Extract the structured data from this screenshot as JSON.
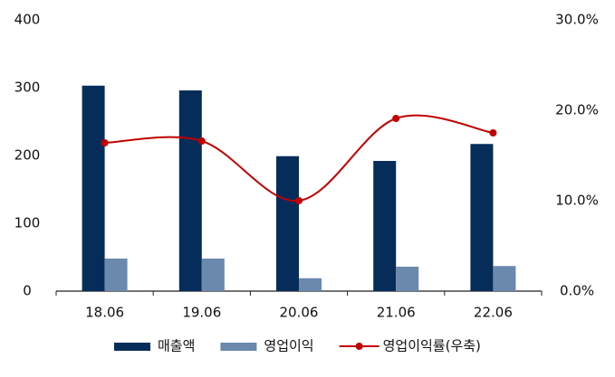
{
  "chart_data": {
    "type": "bar",
    "categories": [
      "18.06",
      "19.06",
      "20.06",
      "21.06",
      "22.06"
    ],
    "series": [
      {
        "name": "매출액",
        "color": "#062d5a",
        "type": "bar",
        "values": [
          303,
          296,
          199,
          192,
          217
        ]
      },
      {
        "name": "영업이익",
        "color": "#6b88ad",
        "type": "bar",
        "values": [
          48,
          48,
          19,
          36,
          37
        ]
      },
      {
        "name": "영업이익률(우축)",
        "color": "#c00000",
        "type": "line",
        "axis": "y2",
        "values": [
          16.4,
          16.6,
          10.0,
          19.1,
          17.5
        ]
      }
    ],
    "ylim": [
      0,
      400
    ],
    "yticks": [
      0,
      100,
      200,
      300,
      400
    ],
    "y2lim": [
      0,
      30
    ],
    "y2ticks": [
      {
        "value": 0,
        "label": "0.0%"
      },
      {
        "value": 10,
        "label": "10.0%"
      },
      {
        "value": 20,
        "label": "20.0%"
      },
      {
        "value": 30,
        "label": "30.0%"
      }
    ],
    "grid": false
  }
}
